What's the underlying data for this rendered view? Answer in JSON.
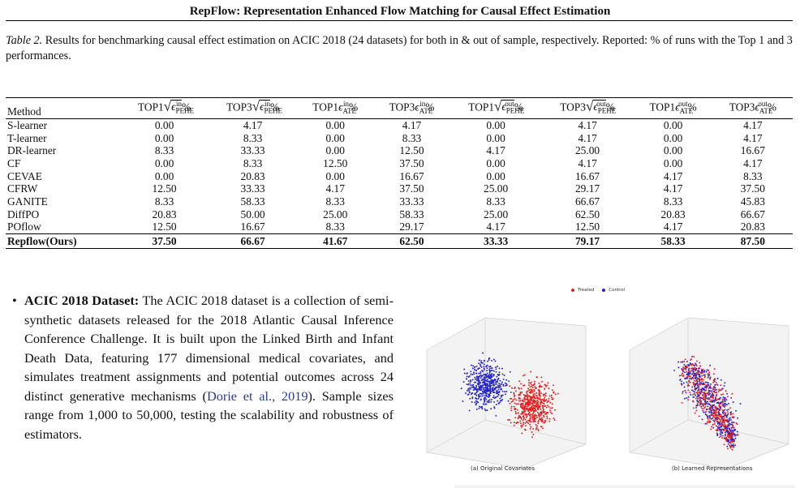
{
  "header": {
    "title": "RepFlow: Representation Enhanced Flow Matching for Causal Effect Estimation"
  },
  "caption": {
    "label": "Table 2.",
    "text": " Results for benchmarking causal effect estimation on ACIC 2018 (24 datasets) for both in & out of sample, respectively. Reported: % of runs with the Top 1 and 3 performances."
  },
  "table": {
    "method_header": "Method",
    "rows": [
      {
        "method": "S-learner",
        "v": [
          "0.00",
          "4.17",
          "0.00",
          "4.17",
          "0.00",
          "4.17",
          "0.00",
          "4.17"
        ]
      },
      {
        "method": "T-learner",
        "v": [
          "0.00",
          "8.33",
          "0.00",
          "8.33",
          "0.00",
          "4.17",
          "0.00",
          "4.17"
        ]
      },
      {
        "method": "DR-learner",
        "v": [
          "8.33",
          "33.33",
          "0.00",
          "12.50",
          "4.17",
          "25.00",
          "0.00",
          "16.67"
        ]
      },
      {
        "method": "CF",
        "v": [
          "0.00",
          "8.33",
          "12.50",
          "37.50",
          "0.00",
          "4.17",
          "0.00",
          "4.17"
        ]
      },
      {
        "method": "CEVAE",
        "v": [
          "0.00",
          "20.83",
          "0.00",
          "16.67",
          "0.00",
          "16.67",
          "4.17",
          "8.33"
        ]
      },
      {
        "method": "CFRW",
        "v": [
          "12.50",
          "33.33",
          "4.17",
          "37.50",
          "25.00",
          "29.17",
          "4.17",
          "37.50"
        ]
      },
      {
        "method": "GANITE",
        "v": [
          "8.33",
          "58.33",
          "8.33",
          "33.33",
          "8.33",
          "66.67",
          "8.33",
          "45.83"
        ]
      },
      {
        "method": "DiffPO",
        "v": [
          "20.83",
          "50.00",
          "25.00",
          "58.33",
          "25.00",
          "62.50",
          "20.83",
          "66.67"
        ]
      },
      {
        "method": "POflow",
        "v": [
          "12.50",
          "16.67",
          "8.33",
          "29.17",
          "4.17",
          "12.50",
          "4.17",
          "20.83"
        ]
      },
      {
        "method": "Repflow(Ours)",
        "v": [
          "37.50",
          "66.67",
          "41.67",
          "62.50",
          "33.33",
          "79.17",
          "58.33",
          "87.50"
        ]
      }
    ]
  },
  "bullet": {
    "title": "ACIC 2018 Dataset:",
    "text": " The ACIC 2018 dataset is a collection of semi-synthetic datasets released for the 2018 Atlantic Causal Inference Conference Challenge. It is built upon the Linked Birth and Infant Death Data, featuring 177 dimensional medical covariates, and simulates treatment assignments and potential outcomes across 24 distinct generative mechanisms (",
    "cite": "Dorie et al., 2019",
    "after": "). Sample sizes range from 1,000 to 50,000, testing the scalability and robustness of estimators."
  },
  "figure": {
    "legend": [
      {
        "label": "Treated",
        "color": "#e32020"
      },
      {
        "label": "Control",
        "color": "#2323c8"
      }
    ],
    "subcaptions": {
      "a": "(a) Original Covariates",
      "b": "(b) Learned Representations"
    }
  }
}
